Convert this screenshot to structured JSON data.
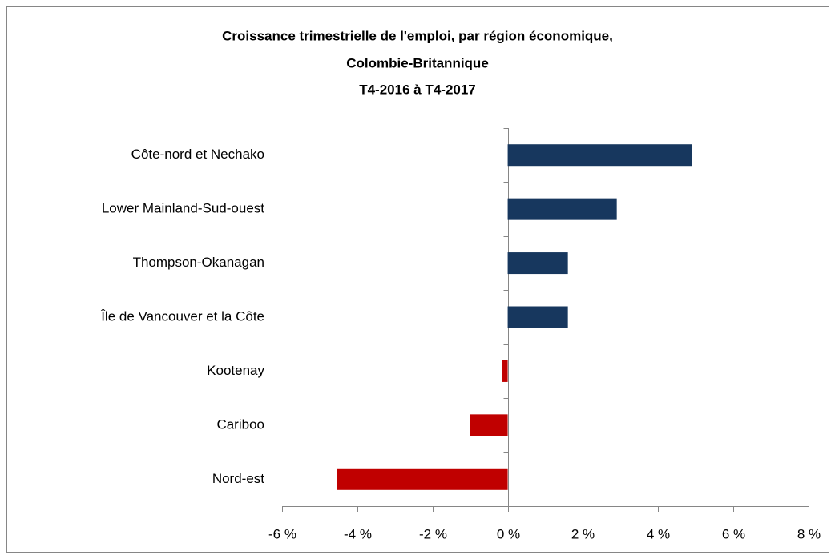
{
  "chart_data": {
    "type": "barh",
    "title": [
      "Croissance trimestrielle de l'emploi, par région économique,",
      "Colombie-Britannique",
      "T4-2016 à T4-2017"
    ],
    "categories": [
      "Côte-nord et Nechako",
      "Lower Mainland-Sud-ouest",
      "Thompson-Okanagan",
      "Île de Vancouver et la Côte",
      "Kootenay",
      "Cariboo",
      "Nord-est"
    ],
    "values": [
      4.9,
      2.9,
      1.6,
      1.6,
      -0.15,
      -1.0,
      -4.55
    ],
    "colors": [
      "#17375e",
      "#17375e",
      "#17375e",
      "#17375e",
      "#c00000",
      "#c00000",
      "#c00000"
    ],
    "xlim": [
      -6,
      8
    ],
    "xticks": [
      {
        "value": -6,
        "label": "-6 %"
      },
      {
        "value": -4,
        "label": "-4 %"
      },
      {
        "value": -2,
        "label": "-2 %"
      },
      {
        "value": 0,
        "label": "0 %"
      },
      {
        "value": 2,
        "label": "2 %"
      },
      {
        "value": 4,
        "label": "4 %"
      },
      {
        "value": 6,
        "label": "6 %"
      },
      {
        "value": 8,
        "label": "8 %"
      }
    ],
    "grid": false
  }
}
